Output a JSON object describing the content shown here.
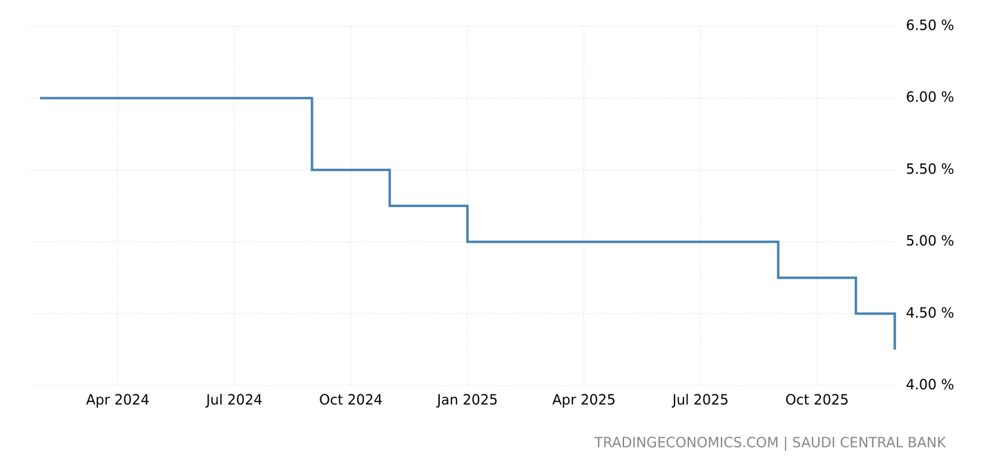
{
  "chart_data": {
    "type": "line",
    "source": "TRADINGECONOMICS.COM | SAUDI CENTRAL BANK",
    "x": [
      "2024-02",
      "2024-09",
      "2024-11",
      "2025-01",
      "2025-09",
      "2025-11",
      "2025-12"
    ],
    "series": [
      {
        "color": "#4682b4",
        "values": [
          6.0,
          5.5,
          5.25,
          5.0,
          4.75,
          4.5,
          4.25
        ]
      }
    ],
    "step": true,
    "xlim": [
      "2024-02",
      "2025-12"
    ],
    "xticks": [
      {
        "value": "2024-04",
        "label": "Apr 2024"
      },
      {
        "value": "2024-07",
        "label": "Jul 2024"
      },
      {
        "value": "2024-10",
        "label": "Oct 2024"
      },
      {
        "value": "2025-01",
        "label": "Jan 2025"
      },
      {
        "value": "2025-04",
        "label": "Apr 2025"
      },
      {
        "value": "2025-07",
        "label": "Jul 2025"
      },
      {
        "value": "2025-10",
        "label": "Oct 2025"
      }
    ],
    "ylim": [
      4.0,
      6.5
    ],
    "yticks": [
      {
        "value": 4.0,
        "label": "4.00 %"
      },
      {
        "value": 4.5,
        "label": "4.50 %"
      },
      {
        "value": 5.0,
        "label": "5.00 %"
      },
      {
        "value": 5.5,
        "label": "5.50 %"
      },
      {
        "value": 6.0,
        "label": "6.00 %"
      },
      {
        "value": 6.5,
        "label": "6.50 %"
      }
    ],
    "grid": true
  }
}
